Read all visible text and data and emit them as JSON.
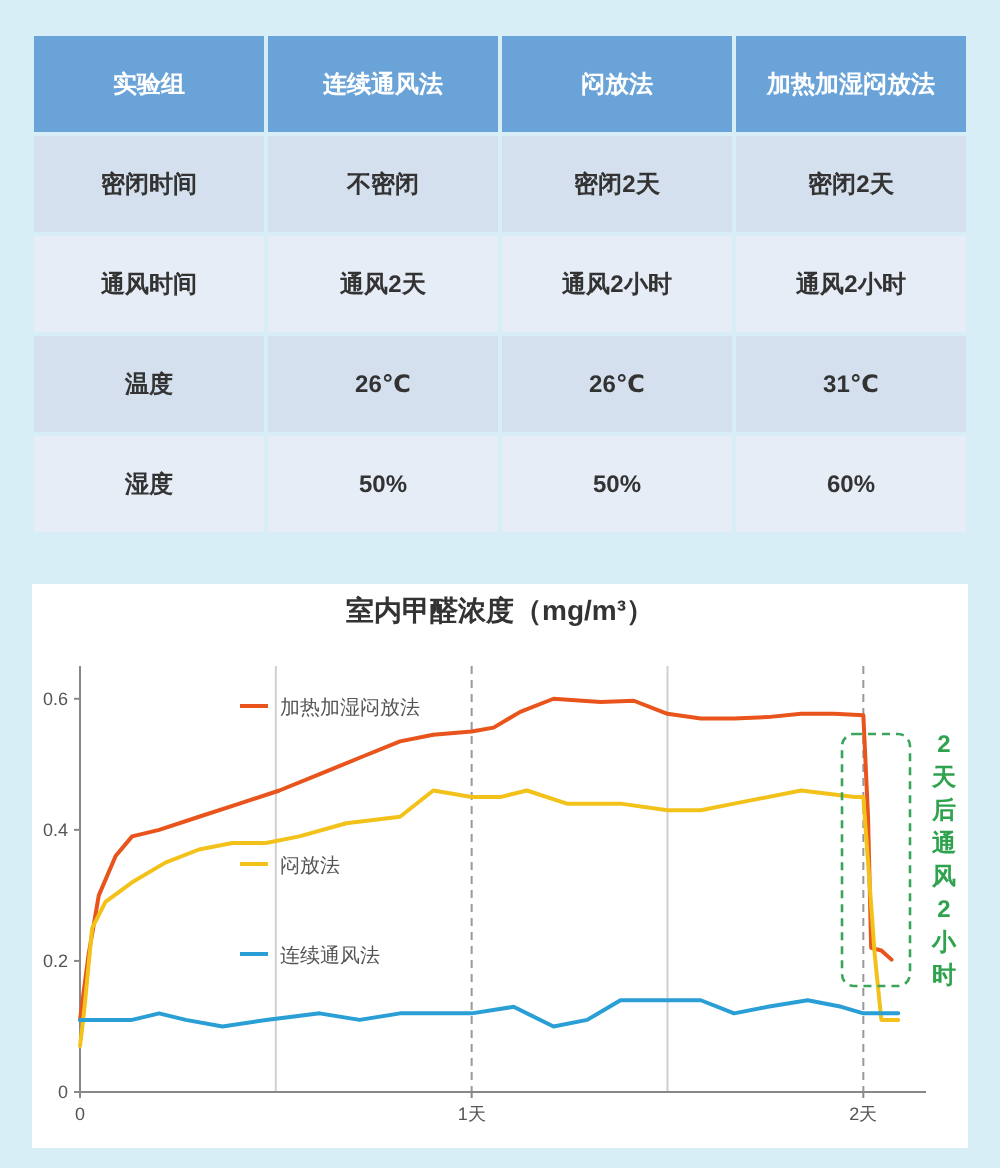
{
  "chart_data": [
    {
      "type": "other",
      "annotations": [
        "实验组",
        "连续通风法",
        "闷放法",
        "加热加湿闷放法",
        "密闭时间",
        "不密闭",
        "密闭2天",
        "密闭2天",
        "通风时间",
        "通风2天",
        "通风2小时",
        "通风2小时",
        "温度",
        "26℃",
        "26℃",
        "31℃",
        "湿度",
        "50%",
        "50%",
        "60%"
      ]
    },
    {
      "type": "line",
      "title": "室内甲醛浓度（mg/m³）",
      "xlim": [
        0,
        2.16
      ],
      "xticks": [
        0,
        {
          "value": 1,
          "label": "1天"
        },
        {
          "value": 2,
          "label": "2天"
        }
      ],
      "ylim": [
        0,
        0.65
      ],
      "yticks": [
        0,
        0.2,
        0.4,
        0.6
      ],
      "grid": false,
      "legend": "left",
      "annotations": [
        "2天后通风2小时"
      ],
      "ref_lines": [
        {
          "axis": "x",
          "value": 0.5,
          "line_style": "solid",
          "color": "#d0d0d0"
        },
        {
          "axis": "x",
          "value": 1,
          "line_style": "dashed",
          "color": "#999999"
        },
        {
          "axis": "x",
          "value": 1.5,
          "line_style": "solid",
          "color": "#d0d0d0"
        },
        {
          "axis": "x",
          "value": 2,
          "line_style": "dashed",
          "color": "#999999"
        }
      ],
      "series": [
        {
          "name": "加热加湿闷放法",
          "color": "#e8541c",
          "x": [
            0,
            0.022,
            0.048,
            0.091,
            0.133,
            0.202,
            0.304,
            0.407,
            0.509,
            0.612,
            0.714,
            0.817,
            0.902,
            1.0,
            1.056,
            1.124,
            1.209,
            1.329,
            1.414,
            1.5,
            1.585,
            1.67,
            1.756,
            1.841,
            1.926,
            2.0,
            2.012,
            2.02,
            2.046,
            2.072
          ],
          "values": [
            0.11,
            0.21,
            0.3,
            0.36,
            0.39,
            0.4,
            0.42,
            0.44,
            0.46,
            0.485,
            0.51,
            0.535,
            0.545,
            0.55,
            0.556,
            0.58,
            0.6,
            0.595,
            0.597,
            0.577,
            0.57,
            0.57,
            0.572,
            0.577,
            0.577,
            0.575,
            0.42,
            0.22,
            0.216,
            0.202
          ]
        },
        {
          "name": "闷放法",
          "color": "#f2c21b",
          "x": [
            0,
            0.01,
            0.031,
            0.065,
            0.133,
            0.218,
            0.304,
            0.389,
            0.475,
            0.56,
            0.68,
            0.817,
            0.902,
            1.0,
            1.073,
            1.141,
            1.243,
            1.38,
            1.5,
            1.585,
            1.67,
            1.841,
            1.978,
            2.0,
            2.029,
            2.046,
            2.089
          ],
          "values": [
            0.07,
            0.12,
            0.25,
            0.29,
            0.32,
            0.35,
            0.37,
            0.38,
            0.38,
            0.39,
            0.41,
            0.42,
            0.46,
            0.45,
            0.45,
            0.46,
            0.44,
            0.44,
            0.43,
            0.43,
            0.44,
            0.46,
            0.45,
            0.45,
            0.21,
            0.11,
            0.11
          ]
        },
        {
          "name": "连续通风法",
          "color": "#2a9fd6",
          "x": [
            0,
            0.048,
            0.133,
            0.202,
            0.27,
            0.364,
            0.475,
            0.612,
            0.714,
            0.817,
            1.0,
            1.107,
            1.209,
            1.295,
            1.38,
            1.5,
            1.585,
            1.67,
            1.756,
            1.858,
            1.944,
            2.0,
            2.089
          ],
          "values": [
            0.11,
            0.11,
            0.11,
            0.12,
            0.11,
            0.1,
            0.11,
            0.12,
            0.11,
            0.12,
            0.12,
            0.13,
            0.1,
            0.11,
            0.14,
            0.14,
            0.14,
            0.12,
            0.13,
            0.14,
            0.13,
            0.12,
            0.12
          ]
        }
      ]
    }
  ]
}
